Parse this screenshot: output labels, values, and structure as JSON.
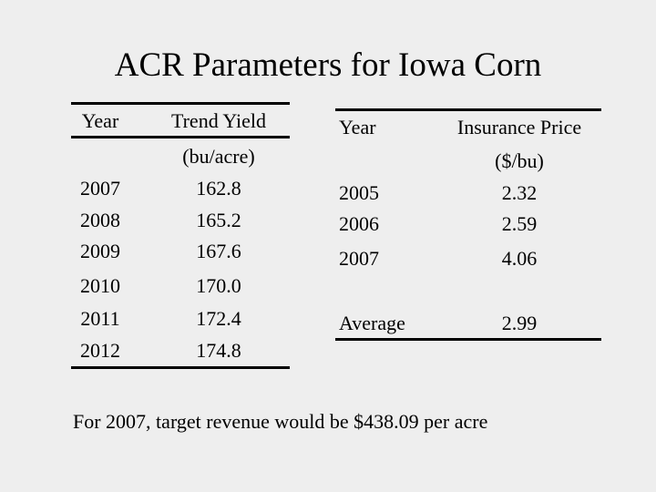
{
  "title": "ACR Parameters for Iowa Corn",
  "table1": {
    "headers": [
      "Year",
      "Trend Yield"
    ],
    "units": "(bu/acre)",
    "rows": [
      [
        "2007",
        "162.8"
      ],
      [
        "2008",
        "165.2"
      ],
      [
        "2009",
        "167.6"
      ],
      [
        "2010",
        "170.0"
      ],
      [
        "2011",
        "172.4"
      ],
      [
        "2012",
        "174.8"
      ]
    ]
  },
  "table2": {
    "headers": [
      "Year",
      "Insurance Price"
    ],
    "units": "($/bu)",
    "rows": [
      [
        "2005",
        "2.32"
      ],
      [
        "2006",
        "2.59"
      ],
      [
        "2007",
        "4.06"
      ]
    ],
    "summary": [
      "Average",
      "2.99"
    ]
  },
  "footnote": "For 2007, target revenue would be $438.09 per acre"
}
